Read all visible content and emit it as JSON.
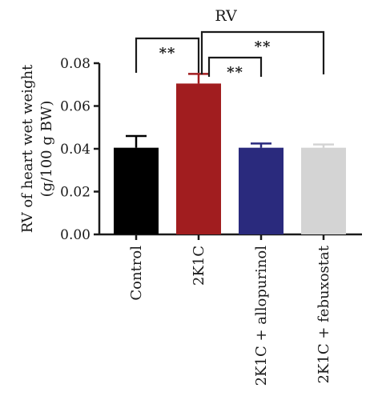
{
  "chart_data": {
    "type": "bar",
    "title": "RV",
    "ylabel_lines": [
      "RV of heart wet weight",
      "(g/100 g BW)"
    ],
    "xlabel": "",
    "categories": [
      "Control",
      "2K1C",
      "2K1C + allopurinol",
      "2K1C + febuxostat"
    ],
    "values": [
      0.0405,
      0.0705,
      0.0405,
      0.0405
    ],
    "errors": [
      0.0055,
      0.0045,
      0.002,
      0.0015
    ],
    "colors": [
      "#000000",
      "#a11d1f",
      "#2a2a7d",
      "#d4d4d4"
    ],
    "ylim": [
      0,
      0.08
    ],
    "yticks": [
      "0.00",
      "0.02",
      "0.04",
      "0.06",
      "0.08"
    ],
    "grid": false,
    "legend": "none",
    "significance": [
      {
        "from": 0,
        "to": 1,
        "label": "**"
      },
      {
        "from": 1,
        "to": 2,
        "label": "**"
      },
      {
        "from": 1,
        "to": 3,
        "label": "**"
      }
    ]
  }
}
